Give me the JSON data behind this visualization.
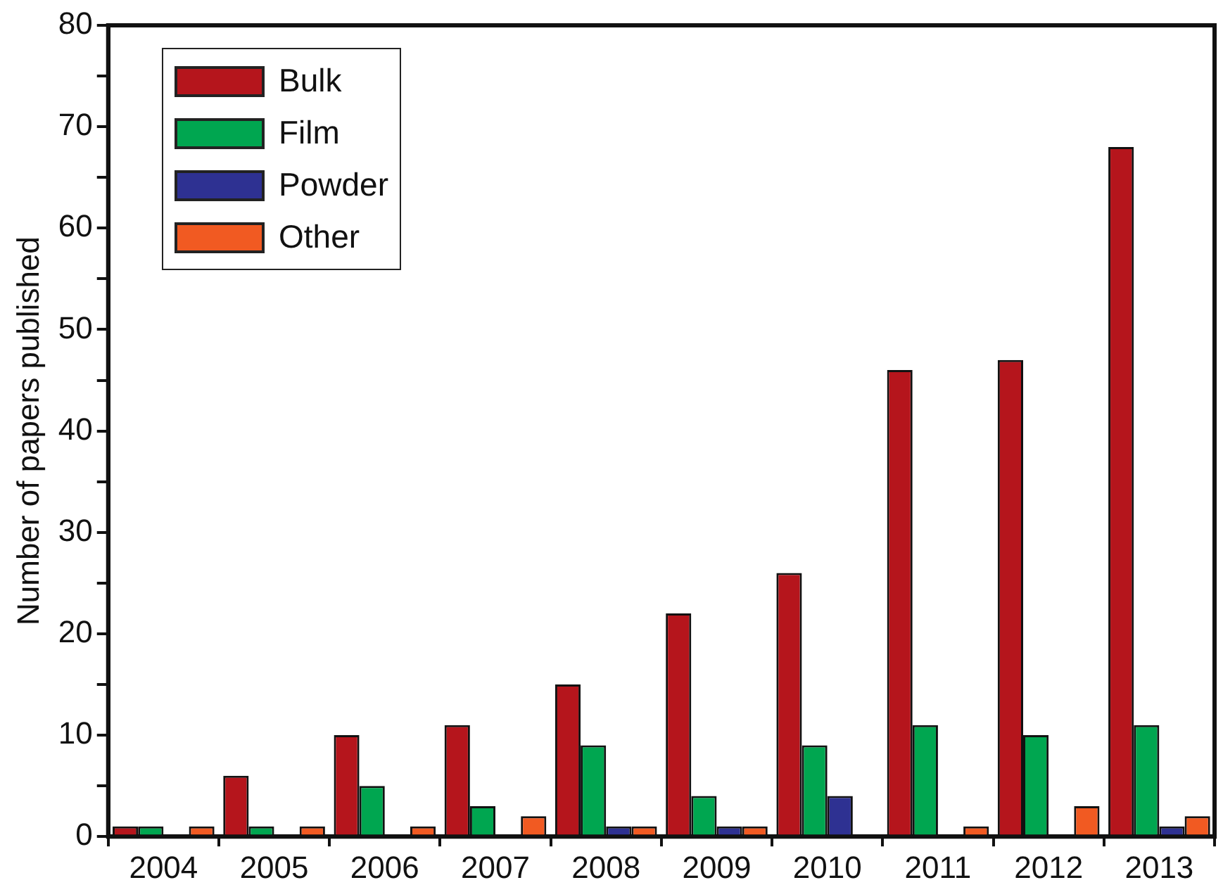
{
  "chart_data": {
    "type": "bar",
    "ylabel": "Number of papers published",
    "categories": [
      "2004",
      "2005",
      "2006",
      "2007",
      "2008",
      "2009",
      "2010",
      "2011",
      "2012",
      "2013"
    ],
    "series": [
      {
        "name": "Bulk",
        "color": "#b5151c",
        "values": [
          1,
          6,
          10,
          11,
          15,
          22,
          26,
          46,
          47,
          68
        ]
      },
      {
        "name": "Film",
        "color": "#00a650",
        "values": [
          1,
          1,
          5,
          3,
          9,
          4,
          9,
          11,
          10,
          11
        ]
      },
      {
        "name": "Powder",
        "color": "#2e3192",
        "values": [
          0,
          0,
          0,
          0,
          1,
          1,
          4,
          0,
          0,
          1
        ]
      },
      {
        "name": "Other",
        "color": "#f15a22",
        "values": [
          1,
          1,
          1,
          2,
          1,
          1,
          0,
          1,
          3,
          2
        ]
      }
    ],
    "ylim": [
      0,
      80
    ],
    "yticks": [
      0,
      {
        "value": 5,
        "label": null
      },
      10,
      {
        "value": 15,
        "label": null
      },
      20,
      {
        "value": 25,
        "label": null
      },
      30,
      {
        "value": 35,
        "label": null
      },
      40,
      {
        "value": 45,
        "label": null
      },
      50,
      {
        "value": 55,
        "label": null
      },
      60,
      {
        "value": 65,
        "label": null
      },
      70,
      {
        "value": 75,
        "label": null
      },
      80
    ],
    "grid": false,
    "legend": "top left"
  }
}
